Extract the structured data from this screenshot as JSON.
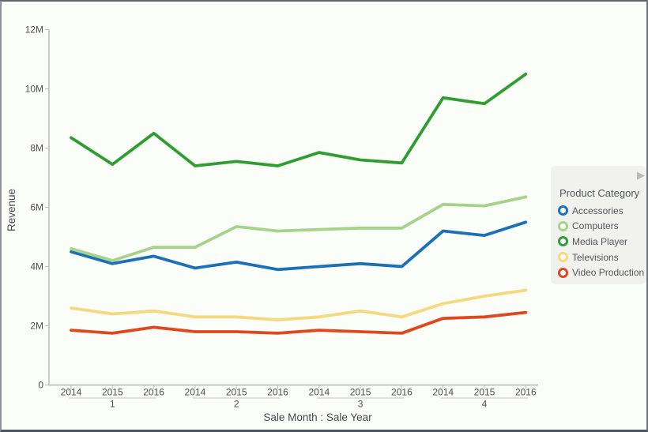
{
  "chart_data": {
    "type": "line",
    "title": "",
    "ylabel": "Revenue",
    "xlabel": "Sale Month : Sale Year",
    "unit": "millions",
    "ylim_m": [
      0,
      12
    ],
    "ytick_labels": [
      "0",
      "2M",
      "4M",
      "6M",
      "8M",
      "10M",
      "12M"
    ],
    "grid": false,
    "x_groups": [
      {
        "month": "1",
        "years": [
          "2014",
          "2015",
          "2016"
        ]
      },
      {
        "month": "2",
        "years": [
          "2014",
          "2015",
          "2016"
        ]
      },
      {
        "month": "3",
        "years": [
          "2014",
          "2015",
          "2016"
        ]
      },
      {
        "month": "4",
        "years": [
          "2014",
          "2015",
          "2016"
        ]
      }
    ],
    "legend": {
      "title": "Product Category",
      "position": "right",
      "expand_icon": "▶"
    },
    "series": [
      {
        "name": "Accessories",
        "color": "#1b71b6",
        "values_m": [
          4.5,
          4.1,
          4.35,
          3.95,
          4.15,
          3.9,
          4.0,
          4.1,
          4.0,
          5.2,
          5.05,
          5.5
        ]
      },
      {
        "name": "Computers",
        "color": "#a6d38a",
        "values_m": [
          4.6,
          4.2,
          4.65,
          4.65,
          5.35,
          5.2,
          5.25,
          5.3,
          5.3,
          6.1,
          6.05,
          6.35
        ]
      },
      {
        "name": "Media Player",
        "color": "#2f9e31",
        "values_m": [
          8.35,
          7.45,
          8.5,
          7.4,
          7.55,
          7.4,
          7.85,
          7.6,
          7.5,
          9.7,
          9.5,
          10.5
        ]
      },
      {
        "name": "Televisions",
        "color": "#f8d87f",
        "values_m": [
          2.6,
          2.4,
          2.5,
          2.3,
          2.3,
          2.2,
          2.3,
          2.5,
          2.3,
          2.75,
          3.0,
          3.2
        ]
      },
      {
        "name": "Video Production",
        "color": "#df471d",
        "values_m": [
          1.85,
          1.75,
          1.95,
          1.8,
          1.8,
          1.75,
          1.85,
          1.8,
          1.75,
          2.25,
          2.3,
          2.45
        ]
      }
    ]
  }
}
